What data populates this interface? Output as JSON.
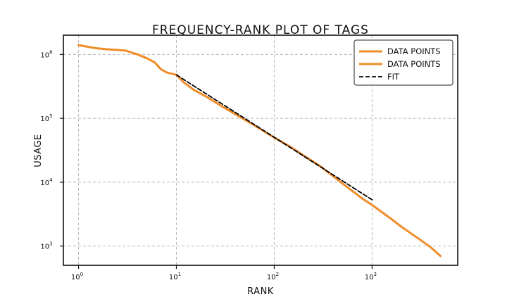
{
  "chart_data": {
    "type": "line",
    "title": "FREQUENCY-RANK PLOT OF TAGS",
    "xlabel": "RANK",
    "ylabel": "USAGE",
    "x_scale": "log",
    "y_scale": "log",
    "xlim": [
      0.7,
      7500
    ],
    "ylim": [
      500,
      2000000
    ],
    "x_ticks": [
      {
        "value": 1,
        "label": "10",
        "exp": "0"
      },
      {
        "value": 10,
        "label": "10",
        "exp": "1"
      },
      {
        "value": 100,
        "label": "10",
        "exp": "2"
      },
      {
        "value": 1000,
        "label": "10",
        "exp": "3"
      }
    ],
    "y_ticks": [
      {
        "value": 1000,
        "label": "10",
        "exp": "3"
      },
      {
        "value": 10000,
        "label": "10",
        "exp": "4"
      },
      {
        "value": 100000,
        "label": "10",
        "exp": "5"
      },
      {
        "value": 1000000,
        "label": "10",
        "exp": "6"
      }
    ],
    "grid": true,
    "legend_position": "top-right",
    "series": [
      {
        "name": "DATA POINTS",
        "style": "solid",
        "color": "#f08c28",
        "x": [
          1,
          1.5,
          2,
          3,
          4,
          5,
          6,
          7,
          8,
          10,
          12,
          15,
          20,
          30,
          50,
          70,
          100,
          150,
          200,
          300,
          500,
          800,
          1000,
          1500,
          2000,
          3000,
          4000,
          5000
        ],
        "y": [
          1400000,
          1250000,
          1200000,
          1150000,
          1000000,
          870000,
          750000,
          580000,
          520000,
          480000,
          360000,
          280000,
          220000,
          150000,
          95000,
          70000,
          50000,
          35000,
          26000,
          17500,
          9500,
          5500,
          4400,
          2800,
          2000,
          1300,
          950,
          700
        ]
      },
      {
        "name": "DATA POINTS",
        "style": "solid",
        "color": "#f08c28",
        "x": [],
        "y": []
      },
      {
        "name": "FIT",
        "style": "dashed",
        "color": "#000000",
        "x": [
          10,
          1000
        ],
        "y": [
          480000,
          5300
        ]
      }
    ]
  }
}
